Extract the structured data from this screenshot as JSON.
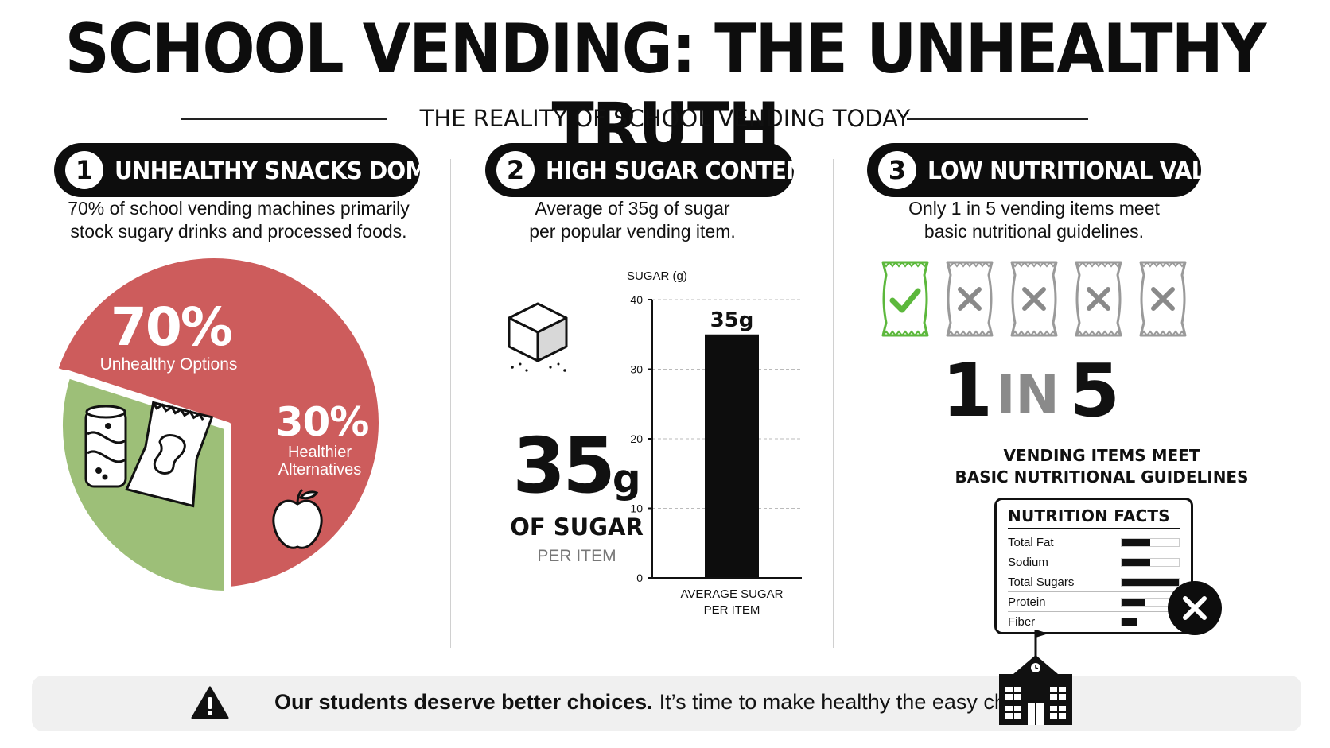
{
  "title": "SCHOOL VENDING: THE UNHEALTHY TRUTH",
  "subtitle": "THE REALITY OF SCHOOL VENDING TODAY",
  "sections": [
    {
      "number": "1",
      "heading": "UNHEALTHY SNACKS DOMINATE",
      "desc_line1": "70% of school vending machines primarily",
      "desc_line2": "stock sugary drinks and processed foods."
    },
    {
      "number": "2",
      "heading": "HIGH SUGAR CONTENT",
      "desc_line1": "Average of 35g of sugar",
      "desc_line2": "per popular vending item."
    },
    {
      "number": "3",
      "heading": "LOW NUTRITIONAL VALUE",
      "desc_line1": "Only 1 in 5 vending items meet",
      "desc_line2": "basic nutritional guidelines."
    }
  ],
  "sugar_callout": {
    "number": "35",
    "unit": "g",
    "line1": "OF SUGAR",
    "line2": "PER ITEM"
  },
  "ratio": {
    "one": "1",
    "in": "IN",
    "five": "5",
    "line1": "VENDING ITEMS MEET",
    "line2": "BASIC NUTRITIONAL GUIDELINES",
    "items": [
      {
        "status": "pass",
        "icon": "check-icon"
      },
      {
        "status": "fail",
        "icon": "x-icon"
      },
      {
        "status": "fail",
        "icon": "x-icon"
      },
      {
        "status": "fail",
        "icon": "x-icon"
      },
      {
        "status": "fail",
        "icon": "x-icon"
      }
    ]
  },
  "nutrition_facts": {
    "title": "NUTRITION FACTS",
    "rows": [
      {
        "label": "Total Fat",
        "level": 0.5
      },
      {
        "label": "Sodium",
        "level": 0.5
      },
      {
        "label": "Total Sugars",
        "level": 1.0
      },
      {
        "label": "Protein",
        "level": 0.4
      },
      {
        "label": "Fiber",
        "level": 0.28
      }
    ]
  },
  "footer": {
    "bold": "Our students deserve better choices.",
    "text": "It’s time to make healthy the easy choice."
  },
  "colors": {
    "unhealthy": "#cd5c5c",
    "healthy": "#9dbf78",
    "pass": "#5cb83c",
    "dark": "#0d0d0d"
  },
  "chart_data": [
    {
      "type": "pie",
      "slices": [
        {
          "name": "Unhealthy Options",
          "value": 70,
          "label": "70%"
        },
        {
          "name": "Healthier Alternatives",
          "value": 30,
          "label": "30%"
        }
      ]
    },
    {
      "type": "bar",
      "ylabel": "SUGAR (g)",
      "categories": [
        "AVERAGE SUGAR PER ITEM"
      ],
      "category_label_lines": [
        "AVERAGE SUGAR",
        "PER ITEM"
      ],
      "values": [
        35
      ],
      "data_labels": [
        "35g"
      ],
      "ylim": [
        0,
        40
      ],
      "yticks": [
        0,
        10,
        20,
        30,
        40
      ],
      "grid": true
    }
  ]
}
